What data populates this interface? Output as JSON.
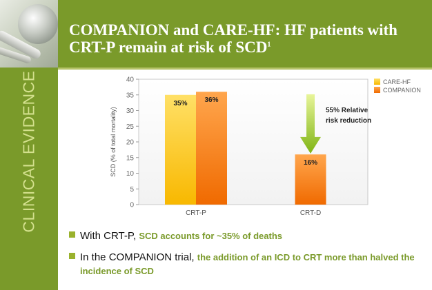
{
  "slide": {
    "title": "COMPANION and CARE-HF: HF patients with CRT-P remain at risk of SCD",
    "title_sup": "1",
    "side_label": "CLINICAL EVIDENCE",
    "accent_color": "#7a9a2a"
  },
  "chart_data": {
    "type": "bar",
    "categories": [
      "CRT-P",
      "CRT-D"
    ],
    "series": [
      {
        "name": "CARE-HF",
        "values": [
          35,
          null
        ],
        "color": "#fcc419"
      },
      {
        "name": "COMPANION",
        "values": [
          36,
          16
        ],
        "color": "#f97c17"
      }
    ],
    "data_labels": [
      {
        "category": "CRT-P",
        "series": "CARE-HF",
        "text": "35%"
      },
      {
        "category": "CRT-P",
        "series": "COMPANION",
        "text": "36%"
      },
      {
        "category": "CRT-D",
        "series": "COMPANION",
        "text": "16%"
      }
    ],
    "yticks": [
      0,
      5,
      10,
      15,
      20,
      25,
      30,
      35,
      40
    ],
    "ylim": [
      0,
      40
    ],
    "ylabel": "SCD  (% of total mortality)",
    "xlabel": "",
    "legend_position": "top-right",
    "annotation": "55% Relative risk reduction",
    "annotation_lines": [
      "55% Relative",
      "risk reduction"
    ],
    "arrow_color": "#8cc21a",
    "grid": false
  },
  "bullets": [
    {
      "lead": "With CRT-P, ",
      "emphasis": "SCD accounts for ~35% of deaths"
    },
    {
      "lead": "In the COMPANION trial, ",
      "emphasis": "the addition of an ICD to CRT more than halved the incidence of SCD"
    }
  ]
}
